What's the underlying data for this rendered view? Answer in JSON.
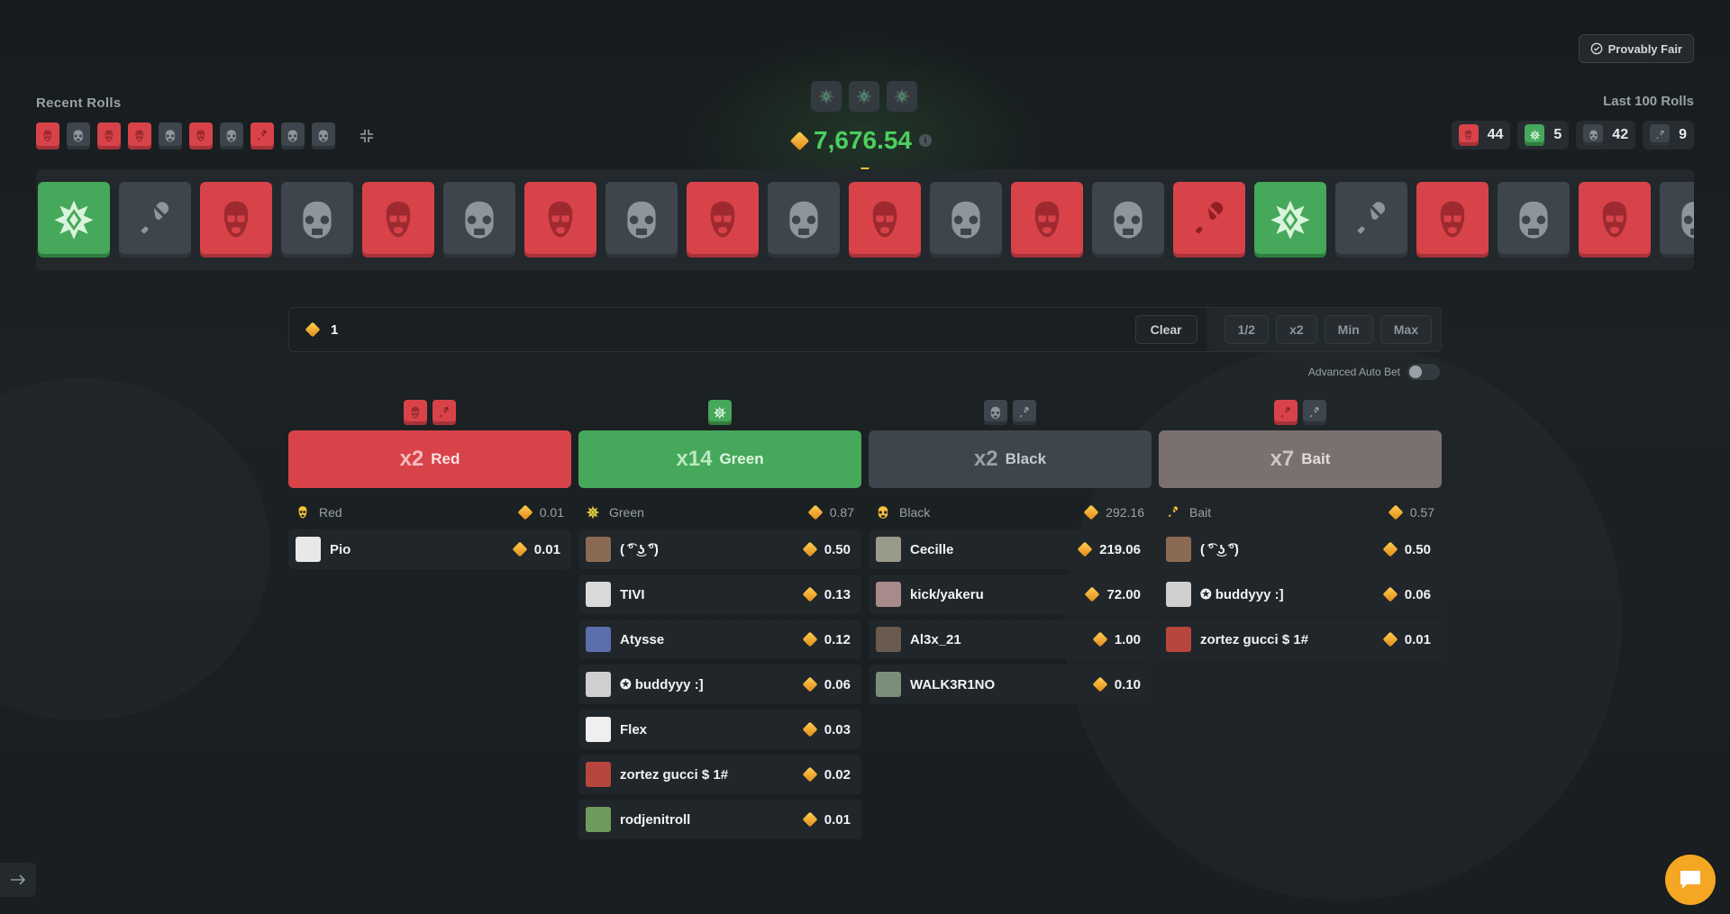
{
  "header": {
    "provably_fair": "Provably Fair",
    "recent_rolls_label": "Recent Rolls",
    "last_100_label": "Last 100 Rolls"
  },
  "recent_rolls": [
    "red",
    "black",
    "red",
    "red",
    "black",
    "red",
    "black",
    "bait-red",
    "black",
    "black"
  ],
  "last_100": [
    {
      "type": "red",
      "count": "44"
    },
    {
      "type": "green",
      "count": "5"
    },
    {
      "type": "black",
      "count": "42"
    },
    {
      "type": "bait",
      "count": "9"
    }
  ],
  "jackpot": {
    "value": "7,676.54"
  },
  "strip": [
    "green",
    "bait",
    "red",
    "black",
    "red",
    "black",
    "red",
    "black",
    "red",
    "black",
    "red",
    "black",
    "red",
    "black",
    "bait-red",
    "green",
    "bait",
    "red",
    "black",
    "red",
    "black"
  ],
  "bet": {
    "amount": "1",
    "clear_label": "Clear",
    "half_label": "1/2",
    "double_label": "x2",
    "min_label": "Min",
    "max_label": "Max",
    "auto_bet_label": "Advanced Auto Bet"
  },
  "columns": [
    {
      "key": "red",
      "multiplier": "x2",
      "name": "Red",
      "icons": [
        "red",
        "bait-red"
      ],
      "head_name": "Red",
      "head_total": "0.01",
      "players": [
        {
          "name": "Pio",
          "amount": "0.01",
          "avatar": "#e8e8e8"
        }
      ]
    },
    {
      "key": "green",
      "multiplier": "x14",
      "name": "Green",
      "icons": [
        "green"
      ],
      "head_name": "Green",
      "head_total": "0.87",
      "players": [
        {
          "name": "( ͡° ͜ʖ ͡°)",
          "amount": "0.50",
          "avatar": "#8a6a52"
        },
        {
          "name": "TIVI",
          "amount": "0.13",
          "avatar": "#d9d9d9"
        },
        {
          "name": "Atysse",
          "amount": "0.12",
          "avatar": "#5b6fae"
        },
        {
          "name": "✪ buddyyy :]",
          "amount": "0.06",
          "avatar": "#cfcfcf"
        },
        {
          "name": "Flex",
          "amount": "0.03",
          "avatar": "#efefef"
        },
        {
          "name": "zortez gucci $ 1#",
          "amount": "0.02",
          "avatar": "#b8463d"
        },
        {
          "name": "rodjenitroll",
          "amount": "0.01",
          "avatar": "#6e9a5e"
        }
      ]
    },
    {
      "key": "black",
      "multiplier": "x2",
      "name": "Black",
      "icons": [
        "black",
        "bait"
      ],
      "head_name": "Black",
      "head_total": "292.16",
      "players": [
        {
          "name": "Cecille",
          "amount": "219.06",
          "avatar": "#9a9a8a"
        },
        {
          "name": "kick/yakeru",
          "amount": "72.00",
          "avatar": "#a88a8a"
        },
        {
          "name": "Al3x_21",
          "amount": "1.00",
          "avatar": "#6b5a4e"
        },
        {
          "name": "WALK3R1NO",
          "amount": "0.10",
          "avatar": "#7a8f7a"
        }
      ]
    },
    {
      "key": "bait",
      "multiplier": "x7",
      "name": "Bait",
      "icons": [
        "bait-red",
        "bait"
      ],
      "head_name": "Bait",
      "head_total": "0.57",
      "players": [
        {
          "name": "( ͡° ͜ʖ ͡°)",
          "amount": "0.50",
          "avatar": "#8a6a52"
        },
        {
          "name": "✪ buddyyy :]",
          "amount": "0.06",
          "avatar": "#cfcfcf"
        },
        {
          "name": "zortez gucci $ 1#",
          "amount": "0.01",
          "avatar": "#b8463d"
        }
      ]
    }
  ],
  "colors": {
    "red": "#d8434a",
    "green": "#46a85a",
    "black": "#3e454d",
    "bait": "#7b7070",
    "accent": "#f5a623",
    "jackpot": "#4ccf5e"
  }
}
